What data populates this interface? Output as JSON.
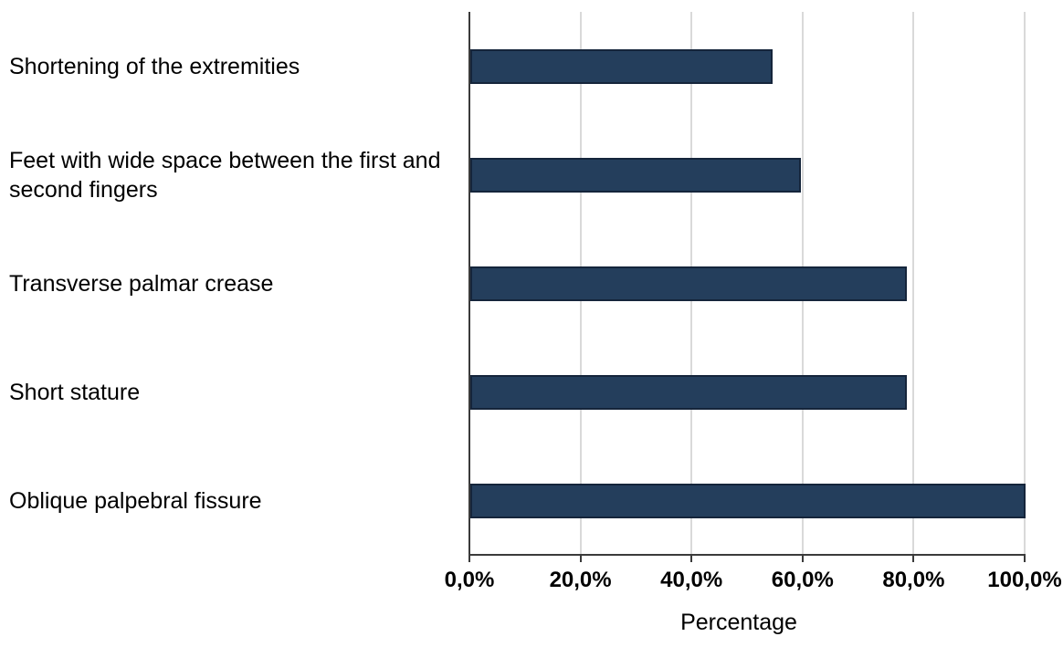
{
  "chart_data": {
    "type": "bar",
    "orientation": "horizontal",
    "title": "",
    "categories": [
      "Shortening of the extremities",
      "Feet with wide space between the first and second fingers",
      "Transverse palmar crease",
      "Short stature",
      "Oblique palpebral fissure"
    ],
    "values": [
      54.5,
      59.5,
      78.6,
      78.6,
      100.0
    ],
    "value_unit": "percent",
    "xlabel": "Percentage",
    "xlim": [
      0,
      100
    ],
    "x_ticks": [
      0,
      20,
      40,
      60,
      80,
      100
    ],
    "x_tick_labels": [
      "0,0%",
      "20,0%",
      "40,0%",
      "60,0%",
      "80,0%",
      "100,0%"
    ],
    "grid": "vertical-gridlines-on",
    "legend": "none",
    "colors": {
      "bar_fill": "#243e5c",
      "bar_border": "#15253b",
      "gridline": "#d9d9d9",
      "axis_line": "#3b3b3b",
      "text": "#000000",
      "background": "#ffffff"
    }
  }
}
